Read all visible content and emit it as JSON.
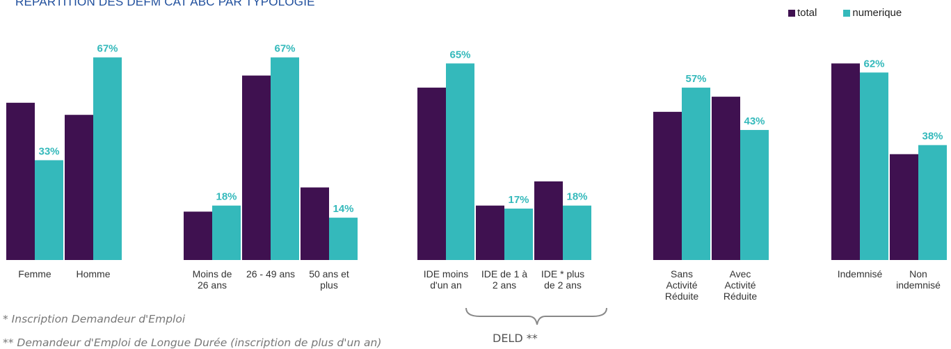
{
  "chart_data": {
    "type": "bar",
    "title": "REPARTITION DES DEFM CAT ABC PAR TYPOLOGIE",
    "legend": {
      "placement": "top-right"
    },
    "colors": {
      "total": "#3f1150",
      "numerique": "#34b9bb"
    },
    "ylim": [
      0,
      100
    ],
    "groups": [
      {
        "id": "sexe",
        "categories": [
          "Femme",
          "Homme"
        ],
        "series": [
          {
            "name": "total",
            "values": [
              52,
              48
            ]
          },
          {
            "name": "numerique",
            "values": [
              33,
              67
            ],
            "labels": [
              "33%",
              "67%"
            ]
          }
        ]
      },
      {
        "id": "age",
        "categories": [
          "Moins de 26 ans",
          "26 - 49 ans",
          "50 ans et plus"
        ],
        "series": [
          {
            "name": "total",
            "values": [
              16,
              61,
              24
            ]
          },
          {
            "name": "numerique",
            "values": [
              18,
              67,
              14
            ],
            "labels": [
              "18%",
              "67%",
              "14%"
            ]
          }
        ]
      },
      {
        "id": "anciennete",
        "categories": [
          "IDE moins d'un an",
          "IDE de 1 à 2 ans",
          "IDE * plus de 2 ans"
        ],
        "series": [
          {
            "name": "total",
            "values": [
              57,
              18,
              26
            ]
          },
          {
            "name": "numerique",
            "values": [
              65,
              17,
              18
            ],
            "labels": [
              "65%",
              "17%",
              "18%"
            ]
          }
        ]
      },
      {
        "id": "activite",
        "categories": [
          "Sans Activité Réduite",
          "Avec Activité Réduite"
        ],
        "series": [
          {
            "name": "total",
            "values": [
              49,
              54
            ]
          },
          {
            "name": "numerique",
            "values": [
              57,
              43
            ],
            "labels": [
              "57%",
              "43%"
            ]
          }
        ]
      },
      {
        "id": "indemnisation",
        "categories": [
          "Indemnisé",
          "Non indemnisé"
        ],
        "series": [
          {
            "name": "total",
            "values": [
              65,
              35
            ]
          },
          {
            "name": "numerique",
            "values": [
              62,
              38
            ],
            "labels": [
              "62%",
              "38%"
            ]
          }
        ]
      }
    ],
    "category_label_lines": {
      "Femme": [
        "Femme"
      ],
      "Homme": [
        "Homme"
      ],
      "Moins de 26 ans": [
        "Moins de",
        "26 ans"
      ],
      "26 - 49 ans": [
        "26 - 49 ans"
      ],
      "50 ans et plus": [
        "50 ans et",
        "plus"
      ],
      "IDE moins d'un an": [
        "IDE moins",
        "d'un an"
      ],
      "IDE de 1 à 2 ans": [
        "IDE de 1 à",
        "2 ans"
      ],
      "IDE * plus de 2 ans": [
        "IDE * plus",
        "de 2 ans"
      ],
      "Sans Activité Réduite": [
        "Sans",
        "Activité",
        "Réduite"
      ],
      "Avec Activité Réduite": [
        "Avec",
        "Activité",
        "Réduite"
      ],
      "Indemnisé": [
        "Indemnisé"
      ],
      "Non indemnisé": [
        "Non",
        "indemnisé"
      ]
    }
  },
  "annotations": {
    "footnote_1": "* Inscription Demandeur d'Emploi",
    "footnote_2": "** Demandeur d'Emploi de Longue Durée (inscription de plus d'un an)",
    "deld_label": "DELD **"
  }
}
